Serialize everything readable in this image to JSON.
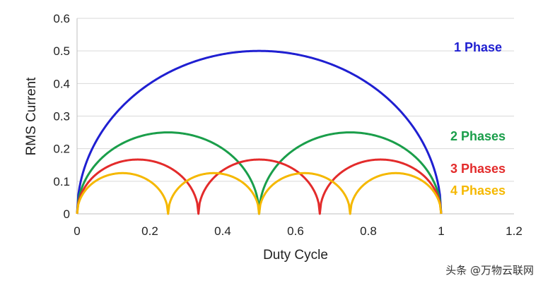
{
  "chart_data": {
    "type": "line",
    "title": "",
    "xlabel": "Duty Cycle",
    "ylabel": "RMS Current",
    "xlim": [
      0,
      1.2
    ],
    "ylim": [
      0,
      0.6
    ],
    "x_ticks": [
      "0",
      "0.2",
      "0.4",
      "0.6",
      "0.8",
      "1",
      "1.2"
    ],
    "y_ticks": [
      "0",
      "0.1",
      "0.2",
      "0.3",
      "0.4",
      "0.5",
      "0.6"
    ],
    "grid": "horizontal",
    "legend": "right-side inline labels",
    "series": [
      {
        "name": "1 Phase",
        "color": "#1f1fd1",
        "x": [
          0,
          0.05,
          0.1,
          0.2,
          0.3,
          0.4,
          0.5,
          0.6,
          0.7,
          0.8,
          0.9,
          0.95,
          1
        ],
        "y": [
          0,
          0.218,
          0.3,
          0.4,
          0.458,
          0.49,
          0.5,
          0.49,
          0.458,
          0.4,
          0.3,
          0.218,
          0
        ]
      },
      {
        "name": "2 Phases",
        "color": "#1a9e4a",
        "x": [
          0,
          0.05,
          0.1,
          0.15,
          0.2,
          0.25,
          0.3,
          0.35,
          0.4,
          0.45,
          0.5,
          0.55,
          0.6,
          0.65,
          0.7,
          0.75,
          0.8,
          0.85,
          0.9,
          0.95,
          1
        ],
        "y": [
          0,
          0.15,
          0.2,
          0.229,
          0.245,
          0.25,
          0.245,
          0.229,
          0.2,
          0.15,
          0,
          0.15,
          0.2,
          0.229,
          0.245,
          0.25,
          0.245,
          0.229,
          0.2,
          0.15,
          0
        ]
      },
      {
        "name": "3 Phases",
        "color": "#e32b2b",
        "x": [
          0,
          0.05,
          0.1,
          0.167,
          0.25,
          0.333,
          0.4,
          0.5,
          0.6,
          0.667,
          0.75,
          0.833,
          0.9,
          0.95,
          1
        ],
        "y": [
          0,
          0.115,
          0.149,
          0.167,
          0.144,
          0.035,
          0.149,
          0.167,
          0.149,
          0.035,
          0.144,
          0.167,
          0.149,
          0.115,
          0
        ]
      },
      {
        "name": "4 Phases",
        "color": "#f5b800",
        "x": [
          0,
          0.05,
          0.125,
          0.2,
          0.25,
          0.3,
          0.375,
          0.45,
          0.5,
          0.55,
          0.625,
          0.7,
          0.75,
          0.8,
          0.875,
          0.95,
          1
        ],
        "y": [
          0,
          0.087,
          0.125,
          0.1,
          0,
          0.1,
          0.125,
          0.087,
          0,
          0.087,
          0.125,
          0.1,
          0,
          0.1,
          0.125,
          0.087,
          0
        ]
      }
    ]
  },
  "watermark": "头条 @万物云联网"
}
